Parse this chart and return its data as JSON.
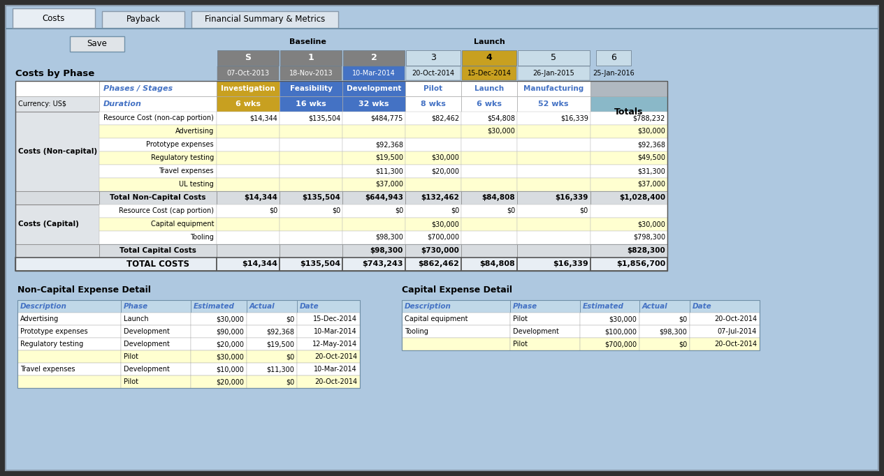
{
  "bg_color": "#aec8e0",
  "outer_bg": "#303030",
  "tab_labels": [
    "Costs",
    "Payback",
    "Financial Summary & Metrics"
  ],
  "save_button": "Save",
  "baseline_label": "Baseline",
  "launch_label": "Launch",
  "phase_numbers": [
    "S",
    "1",
    "2",
    "3",
    "4",
    "5",
    "6"
  ],
  "phase_dates": [
    "07-Oct-2013",
    "18-Nov-2013",
    "10-Mar-2014",
    "20-Oct-2014",
    "15-Dec-2014",
    "26-Jan-2015",
    "25-Jan-2016"
  ],
  "phase_box_bg": [
    "#808080",
    "#808080",
    "#808080",
    "#c8dce8",
    "#c8a020",
    "#c8dce8",
    "#c8dce8"
  ],
  "phase_box_txt": [
    "#ffffff",
    "#ffffff",
    "#ffffff",
    "#000000",
    "#000000",
    "#000000",
    "#000000"
  ],
  "phase_date_bg": [
    "#808080",
    "#808080",
    "#4472c4",
    "#c8dce8",
    "#c8a020",
    "#c8dce8",
    "#c8dce8"
  ],
  "phase_date_txt": [
    "#ffffff",
    "#ffffff",
    "#ffffff",
    "#000000",
    "#000000",
    "#000000",
    "#000000"
  ],
  "costs_by_phase": "Costs by Phase",
  "hdr_invest_bg": "#c8a020",
  "hdr_feasib_bg": "#4472c4",
  "hdr_develop_bg": "#4472c4",
  "hdr_white_bg": "#ffffff",
  "hdr_grey_bg": "#b0b8c0",
  "duration_invest_bg": "#c8a020",
  "duration_feasib_bg": "#4472c4",
  "duration_develop_bg": "#4472c4",
  "totals_cell_bg": "#8ab8c8",
  "col_hdr_names": [
    "Phases / Stages",
    "Investigation",
    "Feasibility",
    "Development",
    "Pilot",
    "Launch",
    "Manufacturing"
  ],
  "durations": [
    "6 wks",
    "16 wks",
    "32 wks",
    "8 wks",
    "6 wks",
    "52 wks"
  ],
  "main_table": {
    "rows_noncap": [
      {
        "label": "Resource Cost (non-cap portion)",
        "vals": [
          "$14,344",
          "$135,504",
          "$484,775",
          "$82,462",
          "$54,808",
          "$16,339"
        ],
        "total": "$788,232",
        "bg": "#ffffff"
      },
      {
        "label": "Advertising",
        "vals": [
          "",
          "",
          "",
          "",
          "$30,000",
          ""
        ],
        "total": "$30,000",
        "bg": "#ffffd0"
      },
      {
        "label": "Prototype expenses",
        "vals": [
          "",
          "",
          "$92,368",
          "",
          "",
          ""
        ],
        "total": "$92,368",
        "bg": "#ffffff"
      },
      {
        "label": "Regulatory testing",
        "vals": [
          "",
          "",
          "$19,500",
          "$30,000",
          "",
          ""
        ],
        "total": "$49,500",
        "bg": "#ffffd0"
      },
      {
        "label": "Travel expenses",
        "vals": [
          "",
          "",
          "$11,300",
          "$20,000",
          "",
          ""
        ],
        "total": "$31,300",
        "bg": "#ffffff"
      },
      {
        "label": "UL testing",
        "vals": [
          "",
          "",
          "$37,000",
          "",
          "",
          ""
        ],
        "total": "$37,000",
        "bg": "#ffffd0"
      }
    ],
    "total_noncap_label": "Total Non-Capital Costs",
    "total_noncap_vals": [
      "$14,344",
      "$135,504",
      "$644,943",
      "$132,462",
      "$84,808",
      "$16,339"
    ],
    "total_noncap_total": "$1,028,400",
    "rows_cap": [
      {
        "label": "Resource Cost (cap portion)",
        "vals": [
          "$0",
          "$0",
          "$0",
          "$0",
          "$0",
          "$0"
        ],
        "total": "",
        "bg": "#ffffff"
      },
      {
        "label": "Capital equipment",
        "vals": [
          "",
          "",
          "",
          "$30,000",
          "",
          ""
        ],
        "total": "$30,000",
        "bg": "#ffffd0"
      },
      {
        "label": "Tooling",
        "vals": [
          "",
          "",
          "$98,300",
          "$700,000",
          "",
          ""
        ],
        "total": "$798,300",
        "bg": "#ffffff"
      }
    ],
    "total_cap_label": "Total Capital Costs",
    "total_cap_vals": [
      "",
      "",
      "$98,300",
      "$730,000",
      "",
      ""
    ],
    "total_cap_total": "$828,300",
    "total_costs_label": "TOTAL COSTS",
    "total_costs_vals": [
      "$14,344",
      "$135,504",
      "$743,243",
      "$862,462",
      "$84,808",
      "$16,339"
    ],
    "total_costs_total": "$1,856,700"
  },
  "noncap_detail": {
    "title": "Non-Capital Expense Detail",
    "headers": [
      "Description",
      "Phase",
      "Estimated",
      "Actual",
      "Date"
    ],
    "rows": [
      [
        "Advertising",
        "Launch",
        "$30,000",
        "$0",
        "15-Dec-2014"
      ],
      [
        "Prototype expenses",
        "Development",
        "$90,000",
        "$92,368",
        "10-Mar-2014"
      ],
      [
        "Regulatory testing",
        "Development",
        "$20,000",
        "$19,500",
        "12-May-2014"
      ],
      [
        "",
        "Pilot",
        "$30,000",
        "$0",
        "20-Oct-2014"
      ],
      [
        "Travel expenses",
        "Development",
        "$10,000",
        "$11,300",
        "10-Mar-2014"
      ],
      [
        "",
        "Pilot",
        "$20,000",
        "$0",
        "20-Oct-2014"
      ]
    ],
    "row_bgs": [
      "#ffffff",
      "#ffffff",
      "#ffffff",
      "#ffffd0",
      "#ffffff",
      "#ffffd0"
    ]
  },
  "cap_detail": {
    "title": "Capital Expense Detail",
    "headers": [
      "Description",
      "Phase",
      "Estimated",
      "Actual",
      "Date"
    ],
    "rows": [
      [
        "Capital equipment",
        "Pilot",
        "$30,000",
        "$0",
        "20-Oct-2014"
      ],
      [
        "Tooling",
        "Development",
        "$100,000",
        "$98,300",
        "07-Jul-2014"
      ],
      [
        "",
        "Pilot",
        "$700,000",
        "$0",
        "20-Oct-2014"
      ]
    ],
    "row_bgs": [
      "#ffffff",
      "#ffffff",
      "#ffffd0"
    ]
  }
}
